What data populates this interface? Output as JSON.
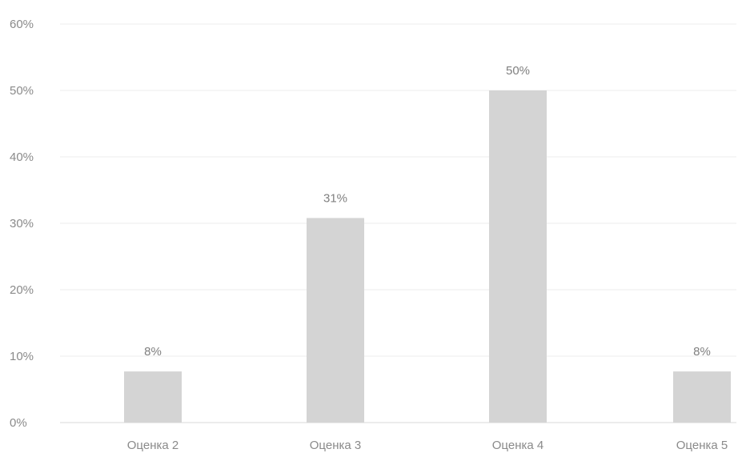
{
  "chart_data": {
    "type": "bar",
    "title": "",
    "xlabel": "",
    "ylabel": "",
    "categories": [
      "Оценка 2",
      "Оценка 3",
      "Оценка 4",
      "Оценка 5"
    ],
    "values": [
      7.7,
      30.8,
      50.0,
      7.7
    ],
    "data_labels": [
      "8%",
      "31%",
      "50%",
      "8%"
    ],
    "ylim": [
      0,
      60
    ],
    "yticks": [
      0,
      10,
      20,
      30,
      40,
      50,
      60
    ],
    "ytick_labels": [
      "0%",
      "10%",
      "20%",
      "30%",
      "40%",
      "50%",
      "60%"
    ],
    "grid": true,
    "legend": "none",
    "colors": {
      "bar": "#d4d4d4",
      "grid": "#ececec",
      "text": "#8a8a8a"
    }
  }
}
